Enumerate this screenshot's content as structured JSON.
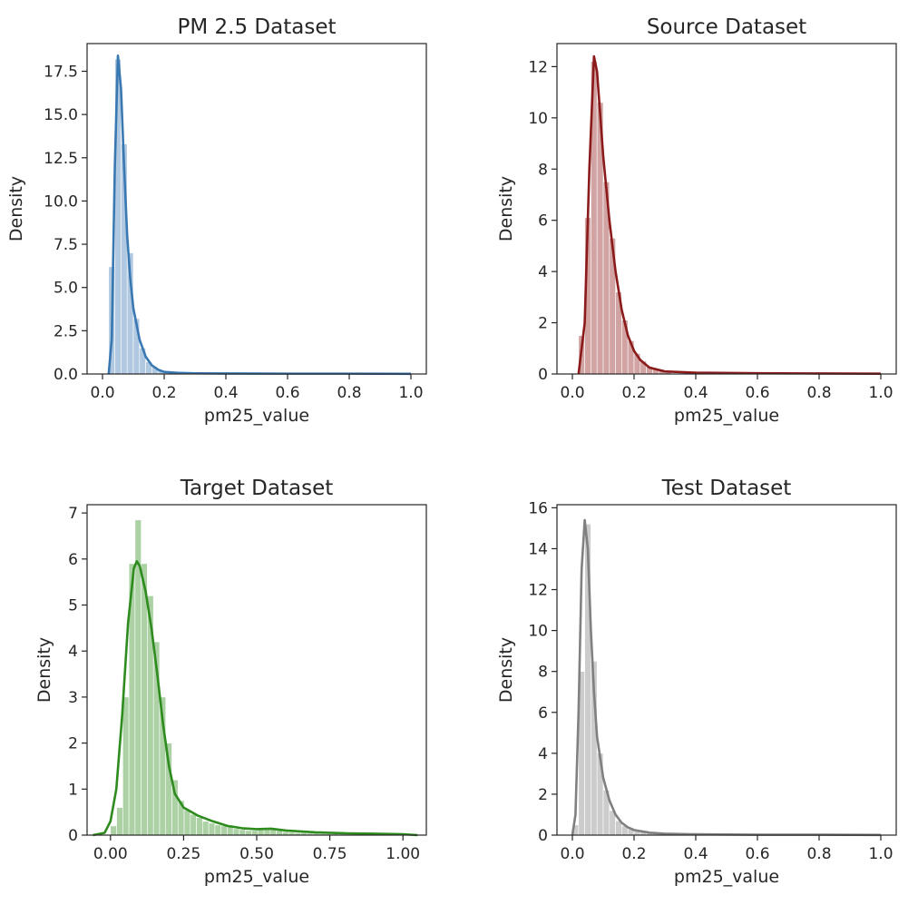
{
  "chart_data": [
    {
      "type": "histogram-kde",
      "title": "PM 2.5 Dataset",
      "xlabel": "pm25_value",
      "ylabel": "Density",
      "color": "#3a78b2",
      "xlim": [
        -0.05,
        1.05
      ],
      "ylim": [
        0,
        19.1
      ],
      "xticks": [
        0.0,
        0.2,
        0.4,
        0.6,
        0.8,
        1.0
      ],
      "xtick_labels": [
        "0.0",
        "0.2",
        "0.4",
        "0.6",
        "0.8",
        "1.0"
      ],
      "yticks": [
        0,
        2.5,
        5,
        7.5,
        10,
        12.5,
        15,
        17.5
      ],
      "ytick_labels": [
        "0.0",
        "2.5",
        "5.0",
        "7.5",
        "10.0",
        "12.5",
        "15.0",
        "17.5"
      ],
      "bin_width": 0.02,
      "bins": [
        {
          "x0": 0.02,
          "value": 6.2
        },
        {
          "x0": 0.04,
          "value": 18.2
        },
        {
          "x0": 0.06,
          "value": 13.3
        },
        {
          "x0": 0.08,
          "value": 7.0
        },
        {
          "x0": 0.1,
          "value": 3.2
        },
        {
          "x0": 0.12,
          "value": 1.5
        },
        {
          "x0": 0.14,
          "value": 0.7
        },
        {
          "x0": 0.16,
          "value": 0.4
        },
        {
          "x0": 0.18,
          "value": 0.2
        },
        {
          "x0": 0.2,
          "value": 0.12
        },
        {
          "x0": 0.22,
          "value": 0.08
        },
        {
          "x0": 0.24,
          "value": 0.05
        },
        {
          "x0": 0.26,
          "value": 0.04
        },
        {
          "x0": 0.28,
          "value": 0.03
        },
        {
          "x0": 0.3,
          "value": 0.02
        }
      ],
      "kde": [
        [
          0.02,
          0.0
        ],
        [
          0.03,
          2.0
        ],
        [
          0.04,
          12.0
        ],
        [
          0.05,
          18.4
        ],
        [
          0.06,
          16.5
        ],
        [
          0.07,
          12.0
        ],
        [
          0.08,
          8.0
        ],
        [
          0.09,
          5.5
        ],
        [
          0.1,
          3.8
        ],
        [
          0.12,
          2.0
        ],
        [
          0.14,
          1.0
        ],
        [
          0.16,
          0.5
        ],
        [
          0.18,
          0.25
        ],
        [
          0.2,
          0.12
        ],
        [
          0.25,
          0.06
        ],
        [
          0.3,
          0.04
        ],
        [
          0.4,
          0.03
        ],
        [
          0.6,
          0.02
        ],
        [
          0.8,
          0.02
        ],
        [
          1.0,
          0.01
        ]
      ]
    },
    {
      "type": "histogram-kde",
      "title": "Source Dataset",
      "xlabel": "pm25_value",
      "ylabel": "Density",
      "color": "#8b1a1a",
      "xlim": [
        -0.05,
        1.05
      ],
      "ylim": [
        0,
        12.9
      ],
      "xticks": [
        0.0,
        0.2,
        0.4,
        0.6,
        0.8,
        1.0
      ],
      "xtick_labels": [
        "0.0",
        "0.2",
        "0.4",
        "0.6",
        "0.8",
        "1.0"
      ],
      "yticks": [
        0,
        2,
        4,
        6,
        8,
        10,
        12
      ],
      "ytick_labels": [
        "0",
        "2",
        "4",
        "6",
        "8",
        "10",
        "12"
      ],
      "bin_width": 0.02,
      "bins": [
        {
          "x0": 0.02,
          "value": 1.5
        },
        {
          "x0": 0.04,
          "value": 6.1
        },
        {
          "x0": 0.06,
          "value": 12.2
        },
        {
          "x0": 0.08,
          "value": 10.6
        },
        {
          "x0": 0.1,
          "value": 7.5
        },
        {
          "x0": 0.12,
          "value": 5.3
        },
        {
          "x0": 0.14,
          "value": 3.2
        },
        {
          "x0": 0.16,
          "value": 2.1
        },
        {
          "x0": 0.18,
          "value": 1.3
        },
        {
          "x0": 0.2,
          "value": 0.8
        },
        {
          "x0": 0.22,
          "value": 0.5
        },
        {
          "x0": 0.24,
          "value": 0.3
        },
        {
          "x0": 0.26,
          "value": 0.2
        },
        {
          "x0": 0.28,
          "value": 0.12
        },
        {
          "x0": 0.3,
          "value": 0.08
        }
      ],
      "kde": [
        [
          0.02,
          0.0
        ],
        [
          0.04,
          2.0
        ],
        [
          0.055,
          8.0
        ],
        [
          0.07,
          12.4
        ],
        [
          0.08,
          11.8
        ],
        [
          0.1,
          8.5
        ],
        [
          0.12,
          6.0
        ],
        [
          0.14,
          4.0
        ],
        [
          0.16,
          2.5
        ],
        [
          0.18,
          1.5
        ],
        [
          0.2,
          0.9
        ],
        [
          0.22,
          0.55
        ],
        [
          0.25,
          0.25
        ],
        [
          0.3,
          0.1
        ],
        [
          0.4,
          0.05
        ],
        [
          0.6,
          0.03
        ],
        [
          0.8,
          0.02
        ],
        [
          1.0,
          0.01
        ]
      ]
    },
    {
      "type": "histogram-kde",
      "title": "Target Dataset",
      "xlabel": "pm25_value",
      "ylabel": "Density",
      "color": "#2e8b1e",
      "xlim": [
        -0.08,
        1.08
      ],
      "ylim": [
        0,
        7.18
      ],
      "xticks": [
        0.0,
        0.25,
        0.5,
        0.75,
        1.0
      ],
      "xtick_labels": [
        "0.00",
        "0.25",
        "0.50",
        "0.75",
        "1.00"
      ],
      "yticks": [
        0,
        1,
        2,
        3,
        4,
        5,
        6,
        7
      ],
      "ytick_labels": [
        "0",
        "1",
        "2",
        "3",
        "4",
        "5",
        "6",
        "7"
      ],
      "bin_width": 0.021,
      "bins": [
        {
          "x0": 0.0,
          "value": 0.2
        },
        {
          "x0": 0.021,
          "value": 0.6
        },
        {
          "x0": 0.042,
          "value": 3.0
        },
        {
          "x0": 0.063,
          "value": 5.9
        },
        {
          "x0": 0.084,
          "value": 6.85
        },
        {
          "x0": 0.105,
          "value": 5.9
        },
        {
          "x0": 0.126,
          "value": 5.2
        },
        {
          "x0": 0.147,
          "value": 4.2
        },
        {
          "x0": 0.168,
          "value": 3.0
        },
        {
          "x0": 0.189,
          "value": 2.0
        },
        {
          "x0": 0.21,
          "value": 1.2
        },
        {
          "x0": 0.231,
          "value": 0.75
        },
        {
          "x0": 0.252,
          "value": 0.55
        },
        {
          "x0": 0.273,
          "value": 0.45
        },
        {
          "x0": 0.294,
          "value": 0.38
        },
        {
          "x0": 0.315,
          "value": 0.3
        },
        {
          "x0": 0.336,
          "value": 0.26
        },
        {
          "x0": 0.357,
          "value": 0.22
        },
        {
          "x0": 0.378,
          "value": 0.2
        },
        {
          "x0": 0.399,
          "value": 0.18
        },
        {
          "x0": 0.42,
          "value": 0.14
        },
        {
          "x0": 0.441,
          "value": 0.12
        },
        {
          "x0": 0.462,
          "value": 0.1
        },
        {
          "x0": 0.483,
          "value": 0.1
        },
        {
          "x0": 0.504,
          "value": 0.12
        },
        {
          "x0": 0.525,
          "value": 0.14
        },
        {
          "x0": 0.546,
          "value": 0.13
        },
        {
          "x0": 0.567,
          "value": 0.1
        },
        {
          "x0": 0.588,
          "value": 0.07
        },
        {
          "x0": 0.609,
          "value": 0.06
        },
        {
          "x0": 0.63,
          "value": 0.05
        },
        {
          "x0": 0.651,
          "value": 0.05
        },
        {
          "x0": 0.672,
          "value": 0.04
        },
        {
          "x0": 0.693,
          "value": 0.04
        },
        {
          "x0": 0.714,
          "value": 0.03
        },
        {
          "x0": 0.735,
          "value": 0.03
        },
        {
          "x0": 0.756,
          "value": 0.03
        },
        {
          "x0": 0.777,
          "value": 0.02
        },
        {
          "x0": 0.798,
          "value": 0.02
        },
        {
          "x0": 0.819,
          "value": 0.02
        },
        {
          "x0": 0.84,
          "value": 0.02
        },
        {
          "x0": 0.861,
          "value": 0.02
        },
        {
          "x0": 0.882,
          "value": 0.02
        },
        {
          "x0": 0.903,
          "value": 0.02
        },
        {
          "x0": 0.924,
          "value": 0.02
        },
        {
          "x0": 0.945,
          "value": 0.02
        },
        {
          "x0": 0.966,
          "value": 0.02
        },
        {
          "x0": 0.987,
          "value": 0.02
        }
      ],
      "kde": [
        [
          -0.06,
          0.0
        ],
        [
          -0.02,
          0.05
        ],
        [
          0.0,
          0.3
        ],
        [
          0.02,
          1.0
        ],
        [
          0.04,
          2.6
        ],
        [
          0.06,
          4.6
        ],
        [
          0.08,
          5.8
        ],
        [
          0.09,
          5.95
        ],
        [
          0.1,
          5.85
        ],
        [
          0.12,
          5.3
        ],
        [
          0.14,
          4.5
        ],
        [
          0.16,
          3.5
        ],
        [
          0.18,
          2.4
        ],
        [
          0.2,
          1.5
        ],
        [
          0.22,
          0.9
        ],
        [
          0.25,
          0.6
        ],
        [
          0.3,
          0.42
        ],
        [
          0.35,
          0.3
        ],
        [
          0.4,
          0.2
        ],
        [
          0.45,
          0.15
        ],
        [
          0.5,
          0.13
        ],
        [
          0.55,
          0.14
        ],
        [
          0.6,
          0.1
        ],
        [
          0.7,
          0.06
        ],
        [
          0.8,
          0.04
        ],
        [
          0.9,
          0.03
        ],
        [
          1.0,
          0.02
        ],
        [
          1.05,
          0.0
        ]
      ]
    },
    {
      "type": "histogram-kde",
      "title": "Test Dataset",
      "xlabel": "pm25_value",
      "ylabel": "Density",
      "color": "#808080",
      "xlim": [
        -0.05,
        1.05
      ],
      "ylim": [
        0,
        16.15
      ],
      "xticks": [
        0.0,
        0.2,
        0.4,
        0.6,
        0.8,
        1.0
      ],
      "xtick_labels": [
        "0.0",
        "0.2",
        "0.4",
        "0.6",
        "0.8",
        "1.0"
      ],
      "yticks": [
        0,
        2,
        4,
        6,
        8,
        10,
        12,
        14,
        16
      ],
      "ytick_labels": [
        "0",
        "2",
        "4",
        "6",
        "8",
        "10",
        "12",
        "14",
        "16"
      ],
      "bin_width": 0.02,
      "bins": [
        {
          "x0": 0.0,
          "value": 0.5
        },
        {
          "x0": 0.02,
          "value": 8.0
        },
        {
          "x0": 0.04,
          "value": 15.2
        },
        {
          "x0": 0.06,
          "value": 8.5
        },
        {
          "x0": 0.08,
          "value": 4.0
        },
        {
          "x0": 0.1,
          "value": 2.2
        },
        {
          "x0": 0.12,
          "value": 1.2
        },
        {
          "x0": 0.14,
          "value": 0.7
        },
        {
          "x0": 0.16,
          "value": 0.45
        },
        {
          "x0": 0.18,
          "value": 0.3
        },
        {
          "x0": 0.2,
          "value": 0.2
        },
        {
          "x0": 0.22,
          "value": 0.15
        },
        {
          "x0": 0.24,
          "value": 0.1
        },
        {
          "x0": 0.26,
          "value": 0.08
        },
        {
          "x0": 0.28,
          "value": 0.06
        },
        {
          "x0": 0.3,
          "value": 0.05
        },
        {
          "x0": 0.32,
          "value": 0.04
        },
        {
          "x0": 0.34,
          "value": 0.03
        }
      ],
      "kde": [
        [
          0.0,
          0.0
        ],
        [
          0.01,
          1.0
        ],
        [
          0.02,
          6.0
        ],
        [
          0.03,
          13.0
        ],
        [
          0.04,
          15.4
        ],
        [
          0.05,
          14.0
        ],
        [
          0.06,
          10.0
        ],
        [
          0.07,
          7.0
        ],
        [
          0.08,
          4.8
        ],
        [
          0.1,
          2.8
        ],
        [
          0.12,
          1.7
        ],
        [
          0.14,
          1.0
        ],
        [
          0.16,
          0.6
        ],
        [
          0.18,
          0.38
        ],
        [
          0.2,
          0.25
        ],
        [
          0.25,
          0.12
        ],
        [
          0.3,
          0.07
        ],
        [
          0.4,
          0.04
        ],
        [
          0.6,
          0.02
        ],
        [
          0.8,
          0.02
        ],
        [
          1.0,
          0.01
        ]
      ]
    }
  ]
}
